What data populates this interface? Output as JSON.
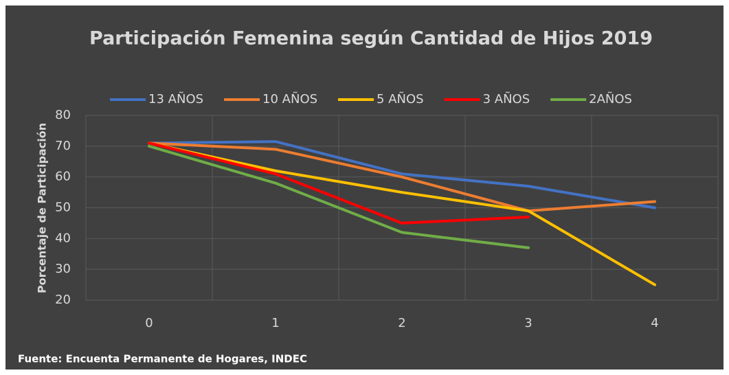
{
  "chart_data": {
    "type": "line",
    "title": "Participación Femenina según Cantidad de Hijos 2019",
    "y_label": "Porcentaje de Participación",
    "source": "Fuente: Encuenta Permanente de Hogares, INDEC",
    "categories": [
      "0",
      "1",
      "2",
      "3",
      "4"
    ],
    "series": [
      {
        "name": "13 AÑOS",
        "color": "#4472c4",
        "values": [
          71,
          71.5,
          61,
          57,
          50
        ]
      },
      {
        "name": "10 AÑOS",
        "color": "#ed7d31",
        "values": [
          71,
          69,
          60,
          49,
          52
        ]
      },
      {
        "name": "5 AÑOS",
        "color": "#ffc000",
        "values": [
          71,
          62,
          55,
          49,
          25
        ]
      },
      {
        "name": "3 AÑOS",
        "color": "#ff0000",
        "values": [
          71,
          61,
          45,
          47,
          null
        ]
      },
      {
        "name": "2AÑOS",
        "color": "#70ad47",
        "values": [
          70,
          58,
          42,
          37,
          null
        ]
      }
    ],
    "ylim": [
      20,
      80
    ],
    "yticks": [
      20,
      30,
      40,
      50,
      60,
      70,
      80
    ],
    "grid": true,
    "legend": "top"
  }
}
